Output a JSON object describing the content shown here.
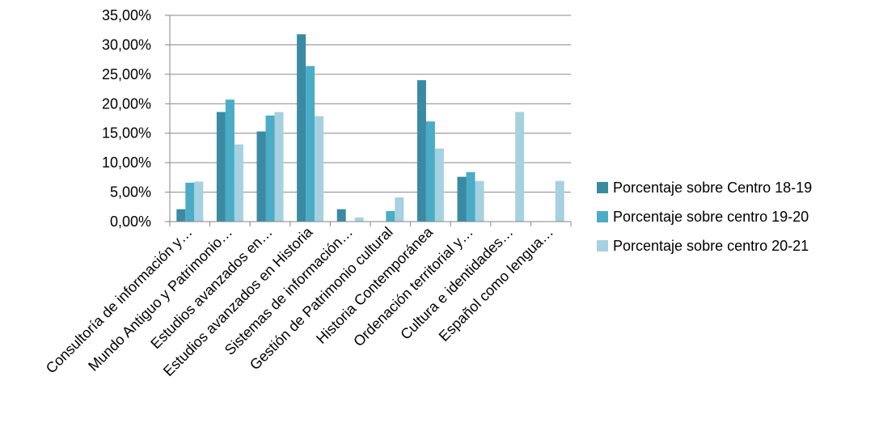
{
  "chart_data": {
    "type": "bar",
    "title": "",
    "xlabel": "",
    "ylabel": "",
    "ylim": [
      0,
      35
    ],
    "y_ticks": [
      "0,00%",
      "5,00%",
      "10,00%",
      "15,00%",
      "20,00%",
      "25,00%",
      "30,00%",
      "35,00%"
    ],
    "y_tick_values": [
      0,
      5,
      10,
      15,
      20,
      25,
      30,
      35
    ],
    "grid": "horizontal",
    "legend_position": "right",
    "categories": [
      "Consultoría de información y…",
      "Mundo Antiguo y Patrimonio…",
      "Estudios avanzados en…",
      "Estudios avanzados en Historia",
      "Sistemas de información…",
      "Gestión de Patrimonio cultural",
      "Historia Contemporánea",
      "Ordenación territorial y…",
      "Cultura e identidades…",
      "Español como lengua…"
    ],
    "series": [
      {
        "name": "Porcentaje sobre Centro 18-19",
        "color": "#3a8aa3",
        "values": [
          2.1,
          18.6,
          15.3,
          31.8,
          2.1,
          0,
          24.0,
          7.6,
          0,
          0
        ]
      },
      {
        "name": "Porcentaje sobre centro 19-20",
        "color": "#4bacc6",
        "values": [
          6.6,
          20.7,
          18.0,
          26.4,
          0,
          1.8,
          17.0,
          8.4,
          0,
          0
        ]
      },
      {
        "name": "Porcentaje sobre centro 20-21",
        "color": "#a5d1e0",
        "values": [
          6.8,
          13.1,
          18.6,
          17.9,
          0.7,
          4.1,
          12.4,
          6.9,
          18.6,
          6.9
        ]
      }
    ]
  }
}
